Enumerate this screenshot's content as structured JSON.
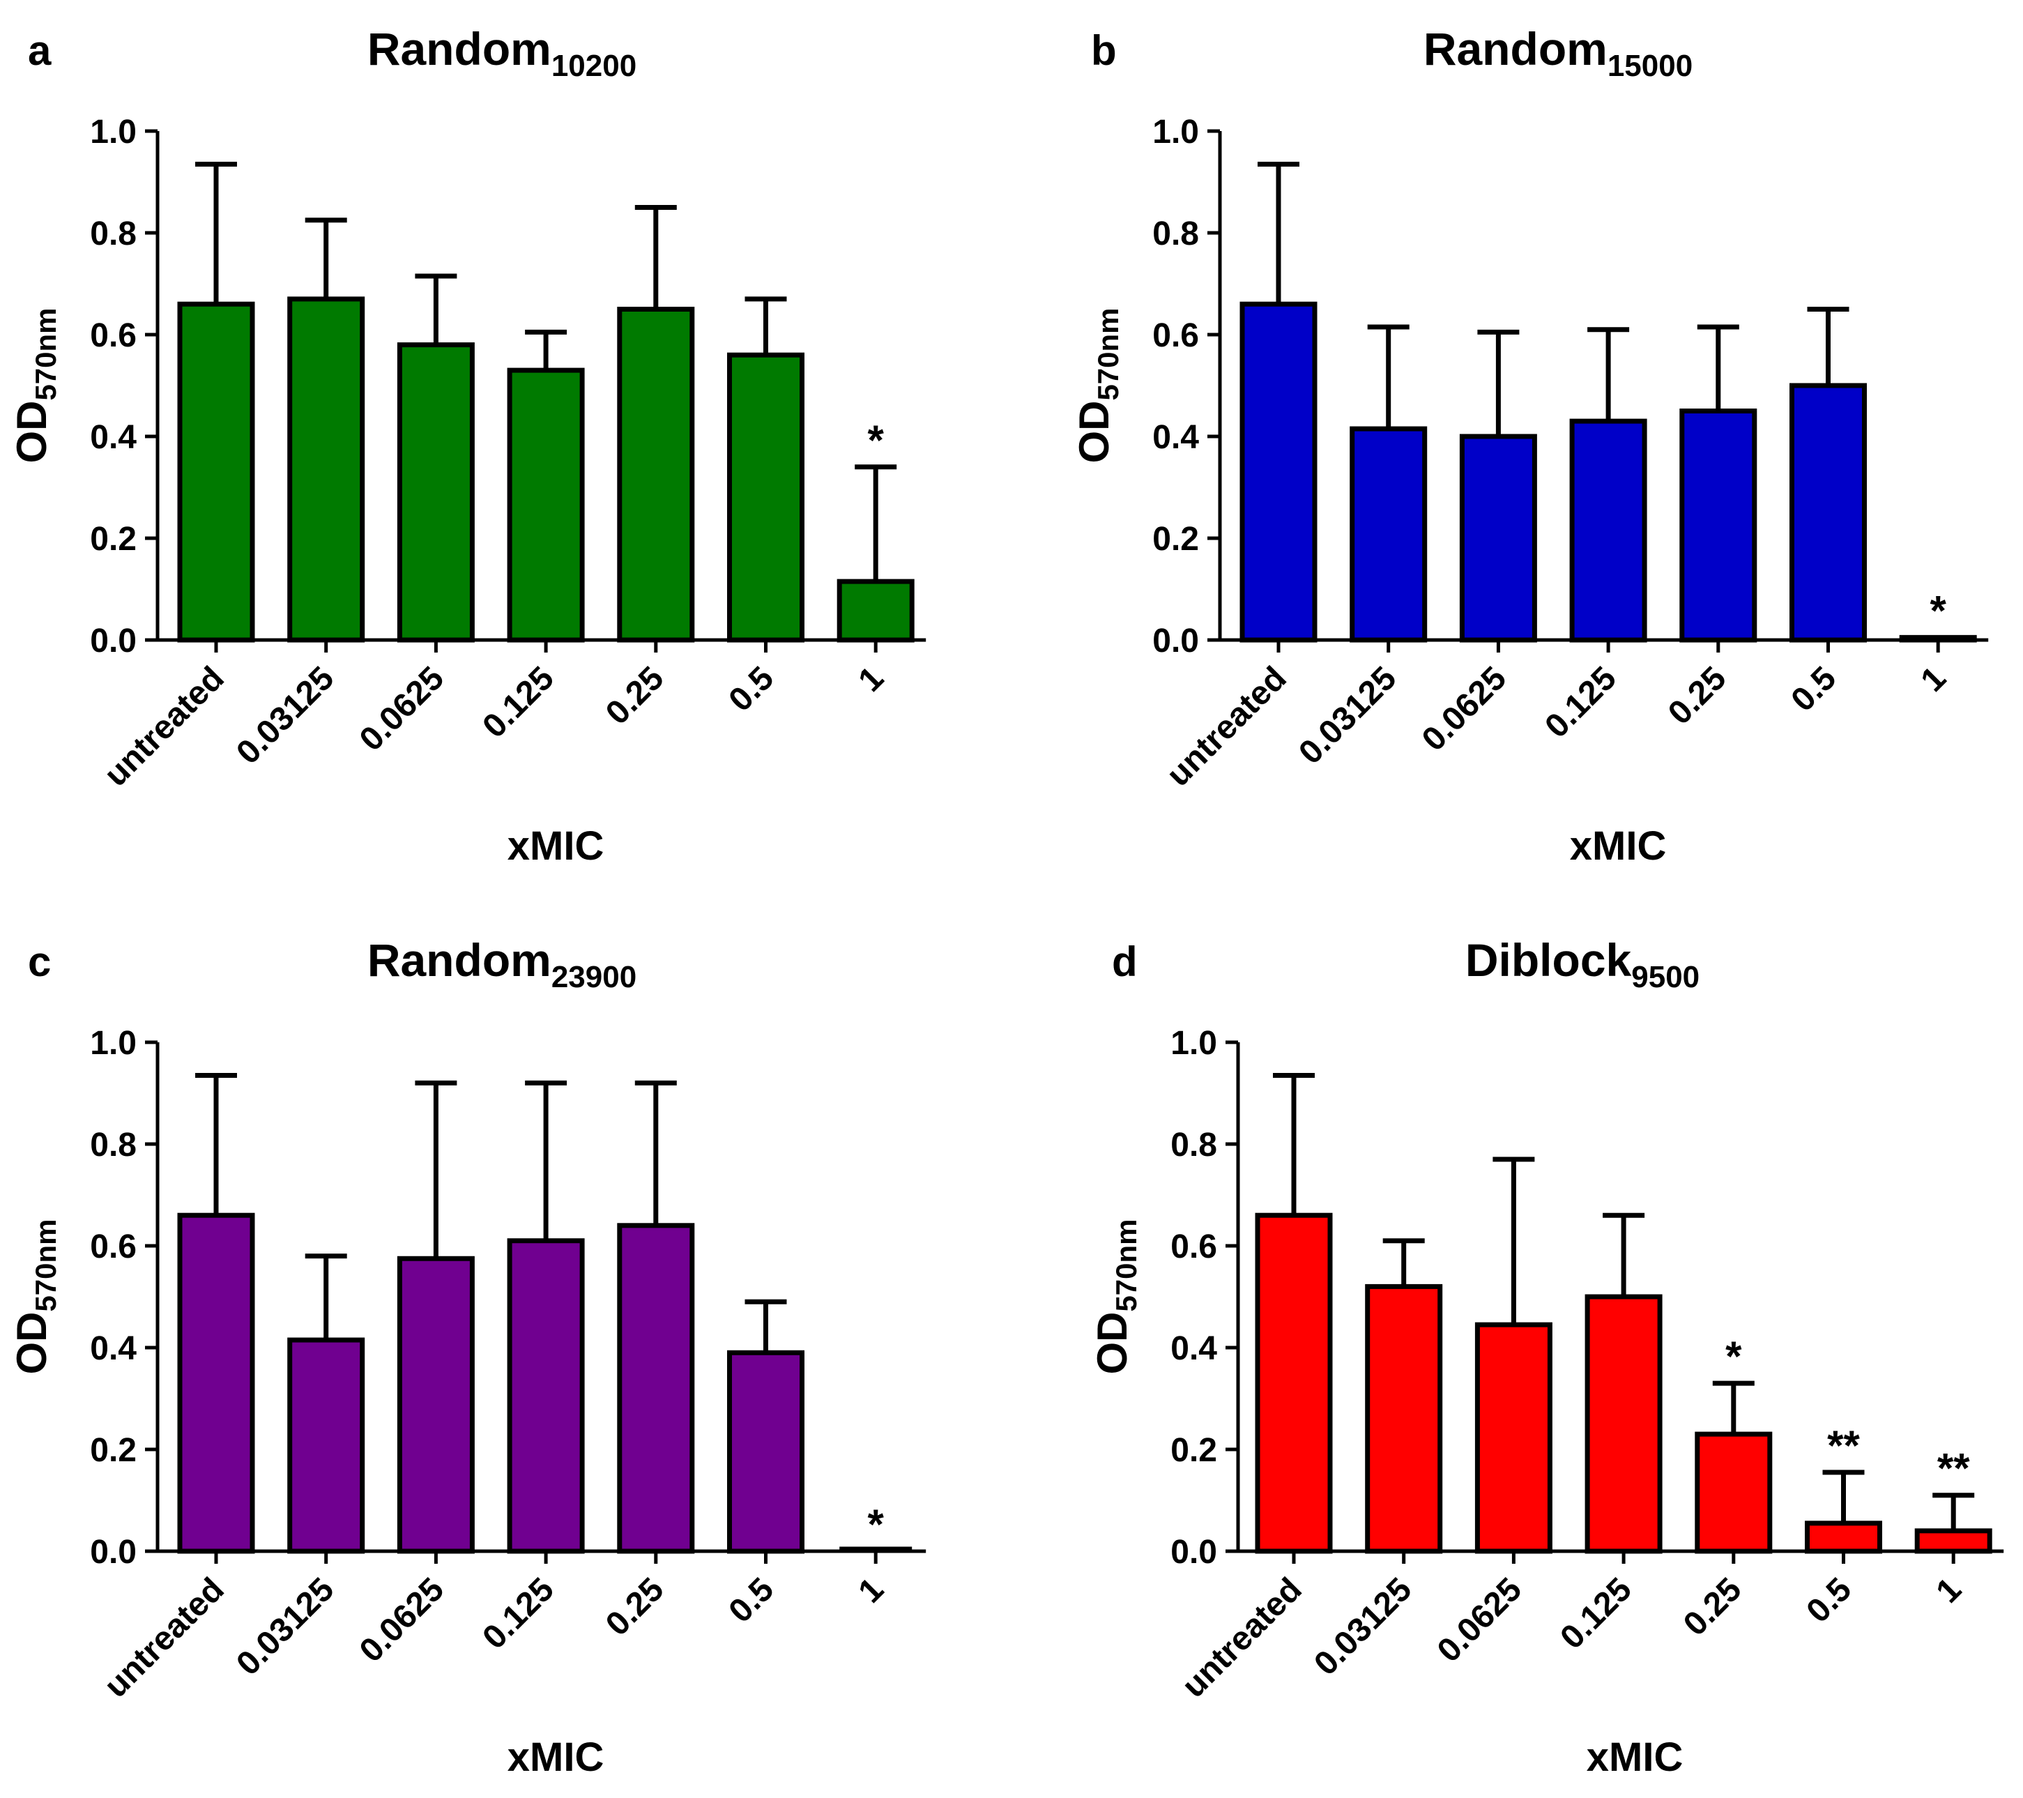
{
  "chart_data": [
    {
      "panel": "a",
      "type": "bar",
      "title_main": "Random",
      "title_sub": "10200",
      "ylabel_main": "OD",
      "ylabel_sub": "570nm",
      "xlabel": "xMIC",
      "categories": [
        "untreated",
        "0.03125",
        "0.0625",
        "0.125",
        "0.25",
        "0.5",
        "1"
      ],
      "values": [
        0.66,
        0.67,
        0.58,
        0.53,
        0.65,
        0.56,
        0.115
      ],
      "errors": [
        0.275,
        0.155,
        0.135,
        0.075,
        0.2,
        0.11,
        0.225
      ],
      "significance": [
        "",
        "",
        "",
        "",
        "",
        "",
        "*"
      ],
      "ylim": [
        0,
        1.0
      ],
      "yticks": [
        "0.0",
        "0.2",
        "0.4",
        "0.6",
        "0.8",
        "1.0"
      ],
      "color": "#007a00"
    },
    {
      "panel": "b",
      "type": "bar",
      "title_main": "Random",
      "title_sub": "15000",
      "ylabel_main": "OD",
      "ylabel_sub": "570nm",
      "xlabel": "xMIC",
      "categories": [
        "untreated",
        "0.03125",
        "0.0625",
        "0.125",
        "0.25",
        "0.5",
        "1"
      ],
      "values": [
        0.66,
        0.415,
        0.4,
        0.43,
        0.45,
        0.5,
        0.005
      ],
      "errors": [
        0.275,
        0.2,
        0.205,
        0.18,
        0.165,
        0.15,
        0
      ],
      "significance": [
        "",
        "",
        "",
        "",
        "",
        "",
        "*"
      ],
      "ylim": [
        0,
        1.0
      ],
      "yticks": [
        "0.0",
        "0.2",
        "0.4",
        "0.6",
        "0.8",
        "1.0"
      ],
      "color": "#0000c8"
    },
    {
      "panel": "c",
      "type": "bar",
      "title_main": "Random",
      "title_sub": "23900",
      "ylabel_main": "OD",
      "ylabel_sub": "570nm",
      "xlabel": "xMIC",
      "categories": [
        "untreated",
        "0.03125",
        "0.0625",
        "0.125",
        "0.25",
        "0.5",
        "1"
      ],
      "values": [
        0.66,
        0.415,
        0.575,
        0.61,
        0.64,
        0.39,
        0
      ],
      "errors": [
        0.275,
        0.165,
        0.345,
        0.31,
        0.28,
        0.1,
        0
      ],
      "significance": [
        "",
        "",
        "",
        "",
        "",
        "",
        "*"
      ],
      "ylim": [
        0,
        1.0
      ],
      "yticks": [
        "0.0",
        "0.2",
        "0.4",
        "0.6",
        "0.8",
        "1.0"
      ],
      "color": "#700090"
    },
    {
      "panel": "d",
      "type": "bar",
      "title_main": "Diblock",
      "title_sub": "9500",
      "ylabel_main": "OD",
      "ylabel_sub": "570nm",
      "xlabel": "xMIC",
      "categories": [
        "untreated",
        "0.03125",
        "0.0625",
        "0.125",
        "0.25",
        "0.5",
        "1"
      ],
      "values": [
        0.66,
        0.52,
        0.445,
        0.5,
        0.23,
        0.055,
        0.04
      ],
      "errors": [
        0.275,
        0.09,
        0.325,
        0.16,
        0.1,
        0.1,
        0.07
      ],
      "significance": [
        "",
        "",
        "",
        "",
        "*",
        "**",
        "**"
      ],
      "ylim": [
        0,
        1.0
      ],
      "yticks": [
        "0.0",
        "0.2",
        "0.4",
        "0.6",
        "0.8",
        "1.0"
      ],
      "color": "#ff0000"
    }
  ]
}
